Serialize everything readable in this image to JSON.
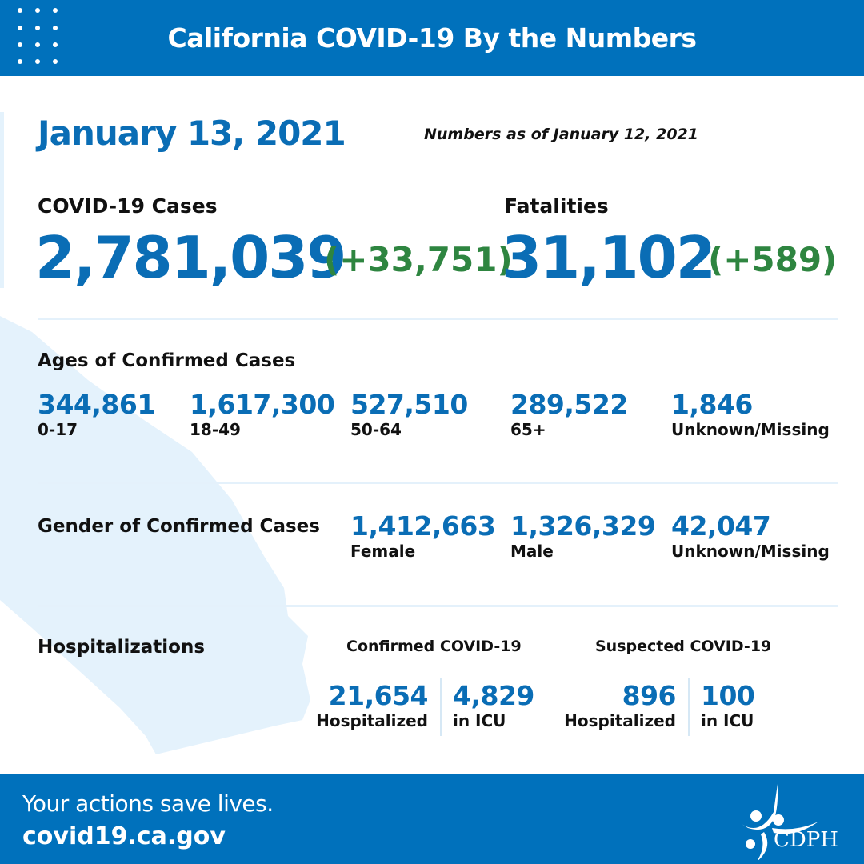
{
  "header": {
    "title": "California COVID-19 By the Numbers"
  },
  "date": "January 13, 2021",
  "as_of": "Numbers as of January 12, 2021",
  "cases": {
    "label": "COVID-19 Cases",
    "total": "2,781,039",
    "change": "(+33,751)"
  },
  "fatalities": {
    "label": "Fatalities",
    "total": "31,102",
    "change": "(+589)"
  },
  "ages": {
    "label": "Ages of Confirmed Cases",
    "items": [
      {
        "value": "344,861",
        "label": "0-17"
      },
      {
        "value": "1,617,300",
        "label": "18-49"
      },
      {
        "value": "527,510",
        "label": "50-64"
      },
      {
        "value": "289,522",
        "label": "65+"
      },
      {
        "value": "1,846",
        "label": "Unknown/Missing"
      }
    ]
  },
  "gender": {
    "label": "Gender of Confirmed Cases",
    "items": [
      {
        "value": "1,412,663",
        "label": "Female"
      },
      {
        "value": "1,326,329",
        "label": "Male"
      },
      {
        "value": "42,047",
        "label": "Unknown/Missing"
      }
    ]
  },
  "hospitalizations": {
    "label": "Hospitalizations",
    "confirmed": {
      "label": "Confirmed COVID-19",
      "hospitalized": "21,654",
      "hospitalized_label": "Hospitalized",
      "icu": "4,829",
      "icu_label": "in ICU"
    },
    "suspected": {
      "label": "Suspected COVID-19",
      "hospitalized": "896",
      "hospitalized_label": "Hospitalized",
      "icu": "100",
      "icu_label": "in ICU"
    }
  },
  "footer": {
    "tagline": "Your actions save lives.",
    "url": "covid19.ca.gov",
    "logo_text": "CDPH"
  },
  "colors": {
    "brand_blue": "#0071bc",
    "number_blue": "#0a6db5",
    "change_green": "#2e8540",
    "map_fill": "#e4f2fc"
  }
}
